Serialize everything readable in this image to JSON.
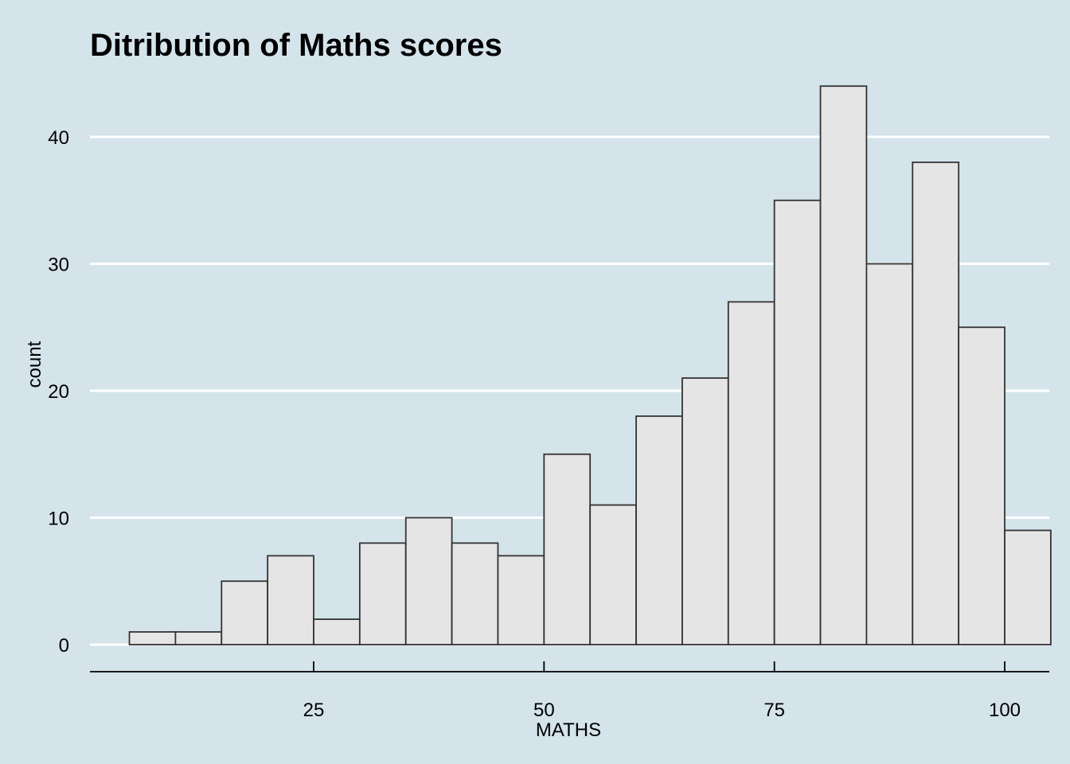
{
  "chart_data": {
    "type": "bar",
    "title": "Ditribution of Maths scores",
    "xlabel": "MATHS",
    "ylabel": "count",
    "bin_width": 5,
    "bin_edges": [
      5,
      10,
      15,
      20,
      25,
      30,
      35,
      40,
      45,
      50,
      55,
      60,
      65,
      70,
      75,
      80,
      85,
      90,
      95,
      100
    ],
    "values": [
      1,
      1,
      5,
      7,
      2,
      8,
      10,
      8,
      7,
      15,
      11,
      18,
      21,
      27,
      35,
      44,
      30,
      38,
      25,
      9
    ],
    "xlim": [
      0,
      105
    ],
    "ylim": [
      0,
      44
    ],
    "x_ticks": [
      25,
      50,
      75,
      100
    ],
    "x_tick_labels": [
      "25",
      "50",
      "75",
      "100"
    ],
    "y_ticks": [
      0,
      10,
      20,
      30,
      40
    ],
    "y_tick_labels": [
      "0",
      "10",
      "20",
      "30",
      "40"
    ],
    "grid": "horizontal-major",
    "colors": {
      "background": "#d5e4eb",
      "bar_fill": "#e5e5e5",
      "bar_stroke": "#333333",
      "grid": "#ffffff"
    }
  }
}
